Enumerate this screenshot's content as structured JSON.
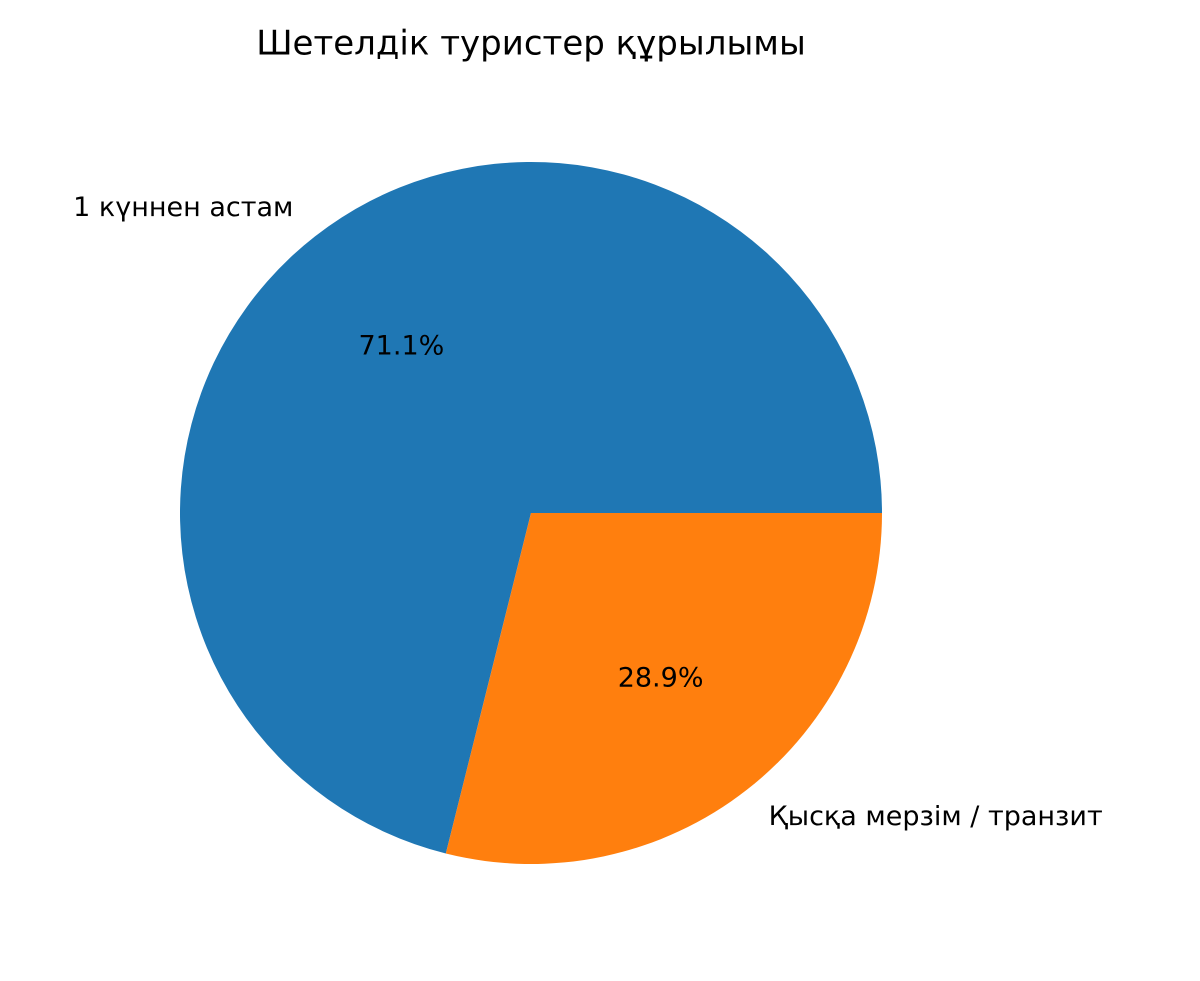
{
  "chart_data": {
    "type": "pie",
    "title": "Шетелдік туристер құрылымы",
    "categories": [
      "1 күннен астам",
      "Қысқа мерзім / транзит"
    ],
    "values": [
      71.1,
      28.9
    ],
    "value_labels": [
      "71.1%",
      "28.9%"
    ],
    "colors": [
      "#1f77b4",
      "#ff7f0e"
    ]
  }
}
